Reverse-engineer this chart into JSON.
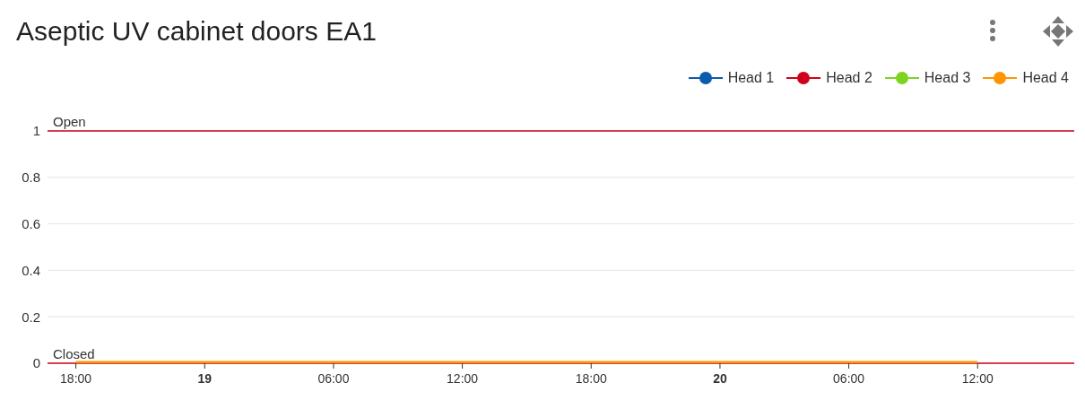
{
  "chart_data": {
    "type": "line",
    "title": "Aseptic UV cabinet doors EA1",
    "categories": [
      "18:00",
      "19",
      "06:00",
      "12:00",
      "18:00",
      "20",
      "06:00",
      "12:00"
    ],
    "series": [
      {
        "name": "Head 1",
        "color": "#0a5cad",
        "values": [
          null,
          null,
          null,
          null,
          null,
          null,
          null,
          null
        ]
      },
      {
        "name": "Head 2",
        "color": "#d0021b",
        "values": [
          null,
          null,
          null,
          null,
          null,
          null,
          null,
          null
        ]
      },
      {
        "name": "Head 3",
        "color": "#7ed321",
        "values": [
          null,
          null,
          null,
          null,
          null,
          null,
          null,
          null
        ]
      },
      {
        "name": "Head 4",
        "color": "#ff9500",
        "values": [
          0,
          0,
          0,
          0,
          0,
          0,
          0,
          0
        ]
      }
    ],
    "ylim": [
      0,
      1
    ],
    "yticks": [
      0,
      0.2,
      0.4,
      0.6,
      0.8,
      1
    ],
    "ref_lines": [
      {
        "axis": "y",
        "value": 1,
        "label": "Open",
        "color": "#d0021b"
      },
      {
        "axis": "y",
        "value": 0,
        "label": "Closed",
        "color": "#d0021b"
      }
    ],
    "grid": "y",
    "legend": "top right",
    "marker": "none"
  }
}
